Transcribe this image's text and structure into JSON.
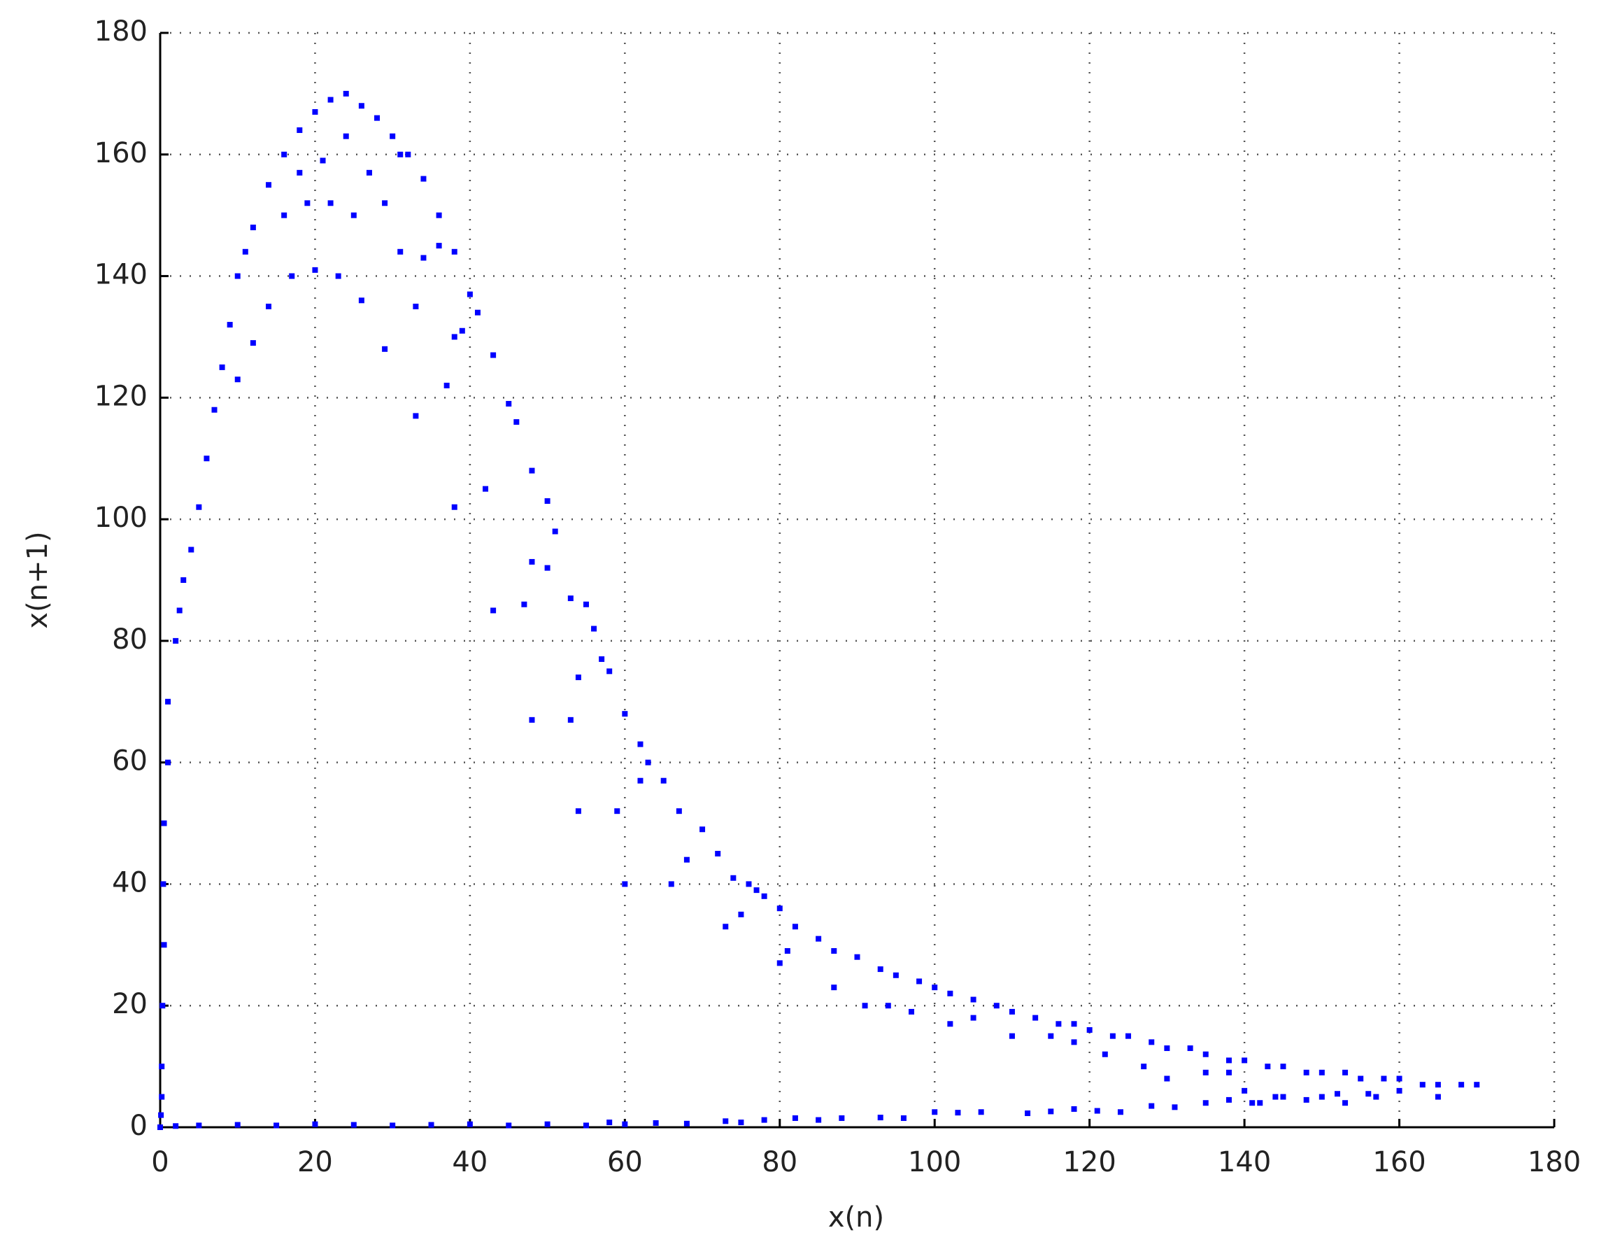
{
  "chart_data": {
    "type": "scatter",
    "xlabel": "x(n)",
    "ylabel": "x(n+1)",
    "color": "#0000ff",
    "grid": true,
    "xlim": [
      0,
      180
    ],
    "ylim": [
      0,
      180
    ],
    "xticks": [
      0,
      20,
      40,
      60,
      80,
      100,
      120,
      140,
      160,
      180
    ],
    "yticks": [
      0,
      20,
      40,
      60,
      80,
      100,
      120,
      140,
      160,
      180
    ],
    "x": [
      0.5,
      0.5,
      1,
      1,
      2,
      2.5,
      3,
      4,
      5,
      6,
      7,
      8,
      9,
      10,
      11,
      12,
      14,
      16,
      18,
      20,
      22,
      24,
      26,
      28,
      30,
      32,
      34,
      36,
      38,
      40,
      41,
      43,
      45,
      46,
      48,
      50,
      51,
      53,
      55,
      56,
      57,
      58,
      60,
      62,
      63,
      65,
      67,
      70,
      72,
      74,
      76,
      78,
      80,
      82,
      85,
      87,
      90,
      93,
      95,
      98,
      100,
      102,
      105,
      108,
      110,
      113,
      116,
      118,
      120,
      123,
      125,
      128,
      130,
      133,
      135,
      138,
      140,
      143,
      145,
      148,
      150,
      153,
      155,
      158,
      160,
      163,
      165,
      168,
      170,
      20,
      17,
      23,
      26,
      29,
      33,
      37,
      38,
      42,
      43,
      47,
      48,
      48,
      50,
      53,
      54,
      54,
      59,
      60,
      62,
      66,
      68,
      73,
      75,
      77,
      80,
      81,
      87,
      91,
      94,
      97,
      102,
      105,
      110,
      115,
      118,
      122,
      127,
      130,
      135,
      138,
      140,
      142,
      145,
      150,
      153,
      157,
      160,
      165,
      10,
      12,
      14,
      16,
      19,
      22,
      25,
      29,
      31,
      21,
      24,
      27,
      18,
      34,
      36,
      38,
      39,
      31,
      33,
      0,
      2,
      5,
      10,
      15,
      20,
      25,
      30,
      35,
      40,
      45,
      50,
      55,
      58,
      60,
      64,
      68,
      73,
      75,
      78,
      82,
      85,
      88,
      93,
      96,
      100,
      103,
      106,
      112,
      115,
      118,
      121,
      124,
      128,
      131,
      135,
      138,
      141,
      144,
      148,
      152,
      156,
      0.2,
      0.3,
      0.2,
      0.4,
      0.1
    ],
    "values": [
      30,
      50,
      60,
      70,
      80,
      85,
      90,
      95,
      102,
      110,
      118,
      125,
      132,
      140,
      144,
      148,
      155,
      160,
      164,
      167,
      169,
      170,
      168,
      166,
      163,
      160,
      156,
      150,
      144,
      137,
      134,
      127,
      119,
      116,
      108,
      103,
      98,
      87,
      86,
      82,
      77,
      75,
      68,
      63,
      60,
      57,
      52,
      49,
      45,
      41,
      40,
      38,
      36,
      33,
      31,
      29,
      28,
      26,
      25,
      24,
      23,
      22,
      21,
      20,
      19,
      18,
      17,
      17,
      16,
      15,
      15,
      14,
      13,
      13,
      12,
      11,
      11,
      10,
      10,
      9,
      9,
      9,
      8,
      8,
      8,
      7,
      7,
      7,
      7,
      141,
      140,
      140,
      136,
      128,
      117,
      122,
      102,
      105,
      85,
      86,
      67,
      93,
      92,
      67,
      52,
      74,
      52,
      40,
      57,
      40,
      44,
      33,
      35,
      39,
      27,
      29,
      23,
      20,
      20,
      19,
      17,
      18,
      15,
      15,
      14,
      12,
      10,
      8,
      9,
      9,
      6,
      4,
      5,
      5,
      4,
      5,
      6,
      5,
      123,
      129,
      135,
      150,
      152,
      152,
      150,
      152,
      160,
      159,
      163,
      157,
      157,
      143,
      145,
      130,
      131,
      144,
      135,
      0,
      0.2,
      0.3,
      0.4,
      0.3,
      0.5,
      0.4,
      0.3,
      0.4,
      0.5,
      0.3,
      0.5,
      0.3,
      0.8,
      0.5,
      0.7,
      0.6,
      1,
      0.8,
      1.2,
      1.5,
      1.2,
      1.5,
      1.6,
      1.5,
      2.5,
      2.4,
      2.5,
      2.3,
      2.6,
      3,
      2.7,
      2.5,
      3.5,
      3.3,
      4,
      4.5,
      4,
      5,
      4.5,
      5.5,
      5.5,
      10,
      20,
      5,
      40,
      2
    ]
  }
}
